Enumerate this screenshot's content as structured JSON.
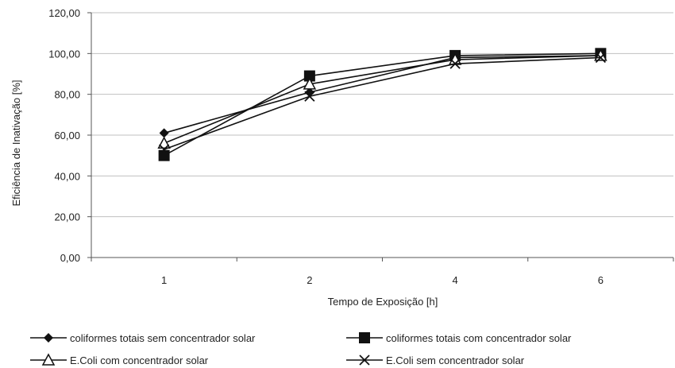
{
  "chart_data": {
    "type": "line",
    "title": "",
    "xlabel": "Tempo de Exposição [h]",
    "ylabel": "Eficiência de Inativação [%]",
    "categories": [
      "1",
      "2",
      "4",
      "6"
    ],
    "ylim": [
      0,
      120
    ],
    "y_ticks": [
      "0,00",
      "20,00",
      "40,00",
      "60,00",
      "80,00",
      "100,00",
      "120,00"
    ],
    "grid": "horizontal",
    "legend_position": "bottom",
    "series": [
      {
        "name": "coliformes totais sem concentrador solar",
        "marker": "diamond",
        "values": [
          61,
          81,
          98,
          99
        ]
      },
      {
        "name": "coliformes totais com concentrador solar",
        "marker": "square",
        "values": [
          50,
          89,
          99,
          100
        ]
      },
      {
        "name": "E.Coli com concentrador solar",
        "marker": "triangle",
        "values": [
          56,
          85,
          97,
          99
        ]
      },
      {
        "name": "E.Coli sem concentrador solar",
        "marker": "x",
        "values": [
          53,
          79,
          95,
          98
        ]
      }
    ],
    "colors": {
      "line": "#111111",
      "grid": "#c0c0c0",
      "axis": "#555555"
    }
  }
}
